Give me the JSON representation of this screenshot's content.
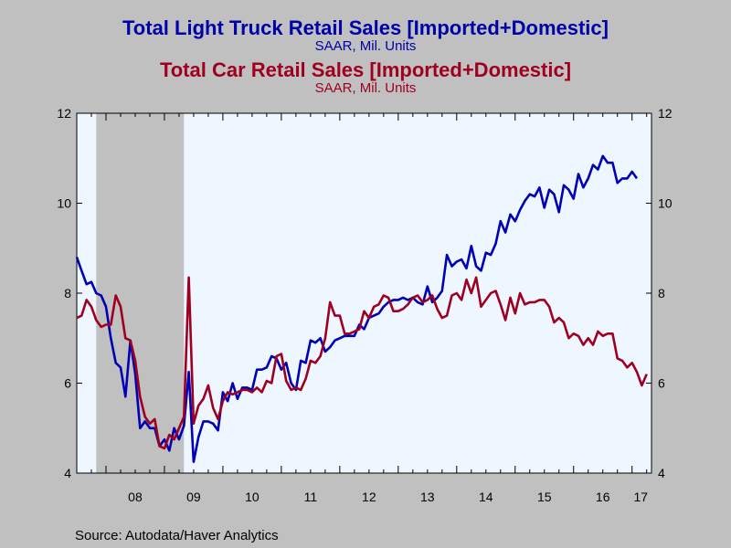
{
  "titles": {
    "series1_title": "Total Light Truck Retail Sales [Imported+Domestic]",
    "series1_subtitle": "SAAR, Mil. Units",
    "series2_title": "Total Car Retail Sales [Imported+Domestic]",
    "series2_subtitle": "SAAR, Mil. Units"
  },
  "source": "Source:  Autodata/Haver Analytics",
  "colors": {
    "truck": "#0000b4",
    "car": "#a00020",
    "plot_bg": "#eef6ff",
    "recession": "#c0c0c0",
    "page_bg": "#c0c0c0"
  },
  "chart_data": {
    "type": "line",
    "title": "Total Light Truck Retail Sales [Imported+Domestic]; Total Car Retail Sales [Imported+Domestic]",
    "ylabel": "SAAR, Mil. Units",
    "ylim": [
      4,
      12
    ],
    "yticks": [
      4,
      6,
      8,
      10,
      12
    ],
    "ytick_labels": [
      "4",
      "6",
      "8",
      "10",
      "12"
    ],
    "xlim": [
      2007.5,
      2017.333
    ],
    "x_tick_labels": [
      "08",
      "09",
      "10",
      "11",
      "12",
      "13",
      "14",
      "15",
      "16",
      "17"
    ],
    "x_label_positions": [
      2008.5,
      2009.5,
      2010.5,
      2011.5,
      2012.5,
      2013.5,
      2014.5,
      2015.5,
      2016.5,
      2017.15
    ],
    "recession": [
      2007.833,
      2009.333
    ],
    "legend": "none",
    "grid": false,
    "series": [
      {
        "name": "Total Light Truck Retail Sales [Imported+Domestic]",
        "points": [
          [
            2007.5,
            8.8
          ],
          [
            2007.583,
            8.5
          ],
          [
            2007.667,
            8.2
          ],
          [
            2007.75,
            8.25
          ],
          [
            2007.833,
            8.0
          ],
          [
            2007.917,
            7.95
          ],
          [
            2008.0,
            7.7
          ],
          [
            2008.083,
            7.0
          ],
          [
            2008.167,
            6.45
          ],
          [
            2008.25,
            6.35
          ],
          [
            2008.333,
            5.7
          ],
          [
            2008.417,
            6.95
          ],
          [
            2008.5,
            6.2
          ],
          [
            2008.583,
            5.0
          ],
          [
            2008.667,
            5.15
          ],
          [
            2008.75,
            5.0
          ],
          [
            2008.833,
            5.0
          ],
          [
            2008.917,
            4.6
          ],
          [
            2009.0,
            4.75
          ],
          [
            2009.083,
            4.5
          ],
          [
            2009.167,
            5.0
          ],
          [
            2009.25,
            4.75
          ],
          [
            2009.333,
            5.05
          ],
          [
            2009.417,
            6.25
          ],
          [
            2009.5,
            4.25
          ],
          [
            2009.583,
            4.8
          ],
          [
            2009.667,
            5.15
          ],
          [
            2009.75,
            5.15
          ],
          [
            2009.833,
            5.1
          ],
          [
            2009.917,
            4.95
          ],
          [
            2010.0,
            5.8
          ],
          [
            2010.083,
            5.6
          ],
          [
            2010.167,
            6.0
          ],
          [
            2010.25,
            5.65
          ],
          [
            2010.333,
            5.9
          ],
          [
            2010.417,
            5.9
          ],
          [
            2010.5,
            5.85
          ],
          [
            2010.583,
            6.3
          ],
          [
            2010.667,
            6.3
          ],
          [
            2010.75,
            6.35
          ],
          [
            2010.833,
            6.6
          ],
          [
            2010.917,
            6.55
          ],
          [
            2011.0,
            6.3
          ],
          [
            2011.083,
            6.45
          ],
          [
            2011.167,
            6.0
          ],
          [
            2011.25,
            5.85
          ],
          [
            2011.333,
            6.5
          ],
          [
            2011.417,
            6.45
          ],
          [
            2011.5,
            6.95
          ],
          [
            2011.583,
            6.9
          ],
          [
            2011.667,
            7.0
          ],
          [
            2011.75,
            6.7
          ],
          [
            2011.833,
            6.8
          ],
          [
            2011.917,
            6.95
          ],
          [
            2012.0,
            7.0
          ],
          [
            2012.083,
            7.05
          ],
          [
            2012.167,
            7.05
          ],
          [
            2012.25,
            7.05
          ],
          [
            2012.333,
            7.3
          ],
          [
            2012.417,
            7.2
          ],
          [
            2012.5,
            7.45
          ],
          [
            2012.583,
            7.5
          ],
          [
            2012.667,
            7.55
          ],
          [
            2012.75,
            7.7
          ],
          [
            2012.833,
            7.8
          ],
          [
            2012.917,
            7.85
          ],
          [
            2013.0,
            7.85
          ],
          [
            2013.083,
            7.9
          ],
          [
            2013.167,
            7.85
          ],
          [
            2013.25,
            7.9
          ],
          [
            2013.333,
            7.8
          ],
          [
            2013.417,
            7.75
          ],
          [
            2013.5,
            8.15
          ],
          [
            2013.583,
            7.8
          ],
          [
            2013.667,
            7.9
          ],
          [
            2013.75,
            8.05
          ],
          [
            2013.833,
            8.85
          ],
          [
            2013.917,
            8.6
          ],
          [
            2014.0,
            8.7
          ],
          [
            2014.083,
            8.75
          ],
          [
            2014.167,
            8.55
          ],
          [
            2014.25,
            9.05
          ],
          [
            2014.333,
            8.6
          ],
          [
            2014.417,
            8.5
          ],
          [
            2014.5,
            8.9
          ],
          [
            2014.583,
            8.85
          ],
          [
            2014.667,
            9.1
          ],
          [
            2014.75,
            9.6
          ],
          [
            2014.833,
            9.35
          ],
          [
            2014.917,
            9.75
          ],
          [
            2015.0,
            9.6
          ],
          [
            2015.083,
            9.85
          ],
          [
            2015.167,
            10.05
          ],
          [
            2015.25,
            10.2
          ],
          [
            2015.333,
            10.15
          ],
          [
            2015.417,
            10.35
          ],
          [
            2015.5,
            9.9
          ],
          [
            2015.583,
            10.3
          ],
          [
            2015.667,
            10.2
          ],
          [
            2015.75,
            9.8
          ],
          [
            2015.833,
            10.4
          ],
          [
            2015.917,
            10.3
          ],
          [
            2016.0,
            10.1
          ],
          [
            2016.083,
            10.65
          ],
          [
            2016.167,
            10.35
          ],
          [
            2016.25,
            10.55
          ],
          [
            2016.333,
            10.85
          ],
          [
            2016.417,
            10.75
          ],
          [
            2016.5,
            11.05
          ],
          [
            2016.583,
            10.9
          ],
          [
            2016.667,
            10.9
          ],
          [
            2016.75,
            10.45
          ],
          [
            2016.833,
            10.55
          ],
          [
            2016.917,
            10.55
          ],
          [
            2017.0,
            10.7
          ],
          [
            2017.083,
            10.55
          ]
        ]
      },
      {
        "name": "Total Car Retail Sales [Imported+Domestic]",
        "points": [
          [
            2007.5,
            7.45
          ],
          [
            2007.583,
            7.5
          ],
          [
            2007.667,
            7.85
          ],
          [
            2007.75,
            7.7
          ],
          [
            2007.833,
            7.4
          ],
          [
            2007.917,
            7.25
          ],
          [
            2008.0,
            7.3
          ],
          [
            2008.083,
            7.3
          ],
          [
            2008.167,
            7.95
          ],
          [
            2008.25,
            7.7
          ],
          [
            2008.333,
            7.0
          ],
          [
            2008.417,
            6.95
          ],
          [
            2008.5,
            6.5
          ],
          [
            2008.583,
            5.7
          ],
          [
            2008.667,
            5.25
          ],
          [
            2008.75,
            5.1
          ],
          [
            2008.833,
            5.2
          ],
          [
            2008.917,
            4.6
          ],
          [
            2009.0,
            4.55
          ],
          [
            2009.083,
            4.85
          ],
          [
            2009.167,
            4.75
          ],
          [
            2009.25,
            5.0
          ],
          [
            2009.333,
            5.25
          ],
          [
            2009.417,
            8.35
          ],
          [
            2009.5,
            5.1
          ],
          [
            2009.583,
            5.5
          ],
          [
            2009.667,
            5.65
          ],
          [
            2009.75,
            5.95
          ],
          [
            2009.833,
            5.45
          ],
          [
            2009.917,
            5.2
          ],
          [
            2010.0,
            5.6
          ],
          [
            2010.083,
            5.8
          ],
          [
            2010.167,
            5.75
          ],
          [
            2010.25,
            5.8
          ],
          [
            2010.333,
            5.85
          ],
          [
            2010.417,
            5.85
          ],
          [
            2010.5,
            5.8
          ],
          [
            2010.583,
            5.9
          ],
          [
            2010.667,
            5.8
          ],
          [
            2010.75,
            6.05
          ],
          [
            2010.833,
            6.0
          ],
          [
            2010.917,
            6.6
          ],
          [
            2011.0,
            6.65
          ],
          [
            2011.083,
            6.05
          ],
          [
            2011.167,
            5.85
          ],
          [
            2011.25,
            5.9
          ],
          [
            2011.333,
            5.85
          ],
          [
            2011.417,
            6.1
          ],
          [
            2011.5,
            6.5
          ],
          [
            2011.583,
            6.45
          ],
          [
            2011.667,
            6.6
          ],
          [
            2011.75,
            7.0
          ],
          [
            2011.833,
            7.8
          ],
          [
            2011.917,
            7.5
          ],
          [
            2012.0,
            7.5
          ],
          [
            2012.083,
            7.1
          ],
          [
            2012.167,
            7.1
          ],
          [
            2012.25,
            7.15
          ],
          [
            2012.333,
            7.2
          ],
          [
            2012.417,
            7.6
          ],
          [
            2012.5,
            7.45
          ],
          [
            2012.583,
            7.7
          ],
          [
            2012.667,
            7.75
          ],
          [
            2012.75,
            7.95
          ],
          [
            2012.833,
            7.9
          ],
          [
            2012.917,
            7.6
          ],
          [
            2013.0,
            7.6
          ],
          [
            2013.083,
            7.65
          ],
          [
            2013.167,
            7.75
          ],
          [
            2013.25,
            7.9
          ],
          [
            2013.333,
            7.95
          ],
          [
            2013.417,
            7.8
          ],
          [
            2013.5,
            7.85
          ],
          [
            2013.583,
            7.95
          ],
          [
            2013.667,
            7.65
          ],
          [
            2013.75,
            7.45
          ],
          [
            2013.833,
            7.5
          ],
          [
            2013.917,
            7.95
          ],
          [
            2014.0,
            8.0
          ],
          [
            2014.083,
            7.85
          ],
          [
            2014.167,
            8.3
          ],
          [
            2014.25,
            8.0
          ],
          [
            2014.333,
            8.35
          ],
          [
            2014.417,
            7.7
          ],
          [
            2014.5,
            7.85
          ],
          [
            2014.583,
            8.0
          ],
          [
            2014.667,
            8.05
          ],
          [
            2014.75,
            7.75
          ],
          [
            2014.833,
            7.4
          ],
          [
            2014.917,
            7.9
          ],
          [
            2015.0,
            7.55
          ],
          [
            2015.083,
            8.0
          ],
          [
            2015.167,
            7.75
          ],
          [
            2015.25,
            7.8
          ],
          [
            2015.333,
            7.8
          ],
          [
            2015.417,
            7.85
          ],
          [
            2015.5,
            7.85
          ],
          [
            2015.583,
            7.7
          ],
          [
            2015.667,
            7.35
          ],
          [
            2015.75,
            7.45
          ],
          [
            2015.833,
            7.35
          ],
          [
            2015.917,
            7.0
          ],
          [
            2016.0,
            7.1
          ],
          [
            2016.083,
            7.05
          ],
          [
            2016.167,
            6.85
          ],
          [
            2016.25,
            7.0
          ],
          [
            2016.333,
            6.85
          ],
          [
            2016.417,
            7.15
          ],
          [
            2016.5,
            7.05
          ],
          [
            2016.583,
            7.1
          ],
          [
            2016.667,
            7.1
          ],
          [
            2016.75,
            6.55
          ],
          [
            2016.833,
            6.5
          ],
          [
            2016.917,
            6.35
          ],
          [
            2017.0,
            6.45
          ],
          [
            2017.083,
            6.25
          ],
          [
            2017.167,
            5.95
          ],
          [
            2017.25,
            6.2
          ]
        ]
      }
    ]
  }
}
